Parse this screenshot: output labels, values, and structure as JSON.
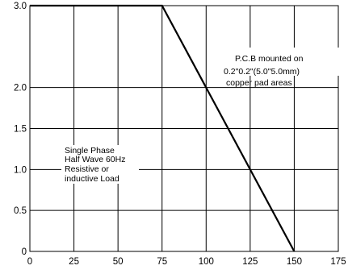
{
  "chart_data": {
    "type": "line",
    "title": "",
    "xlabel": "",
    "ylabel": "",
    "xlim": [
      0,
      175
    ],
    "ylim": [
      0,
      3.0
    ],
    "grid": true,
    "x_ticks": [
      0,
      25,
      50,
      75,
      100,
      125,
      150,
      175
    ],
    "y_ticks": [
      0,
      0.5,
      1.0,
      1.5,
      2.0,
      3.0
    ],
    "x_tick_labels": [
      "0",
      "25",
      "50",
      "75",
      "100",
      "125",
      "150",
      "175"
    ],
    "y_tick_labels": [
      "0",
      "0.5",
      "1.0",
      "1.5",
      "2.0",
      "3.0"
    ],
    "series": [
      {
        "x": [
          0,
          75,
          150
        ],
        "y": [
          3.0,
          3.0,
          0
        ]
      }
    ],
    "annotations": [
      {
        "id": "pcb",
        "lines": [
          "P.C.B mounted on",
          "0.2\"0.2\"(5.0\"5.0mm)",
          "copper pad areas"
        ]
      },
      {
        "id": "load",
        "lines": [
          "Single Phase",
          "Half Wave 60Hz",
          "Resistive or",
          "inductive Load"
        ]
      }
    ]
  },
  "colors": {
    "line": "#000000",
    "grid": "#000000",
    "background": "#ffffff"
  }
}
